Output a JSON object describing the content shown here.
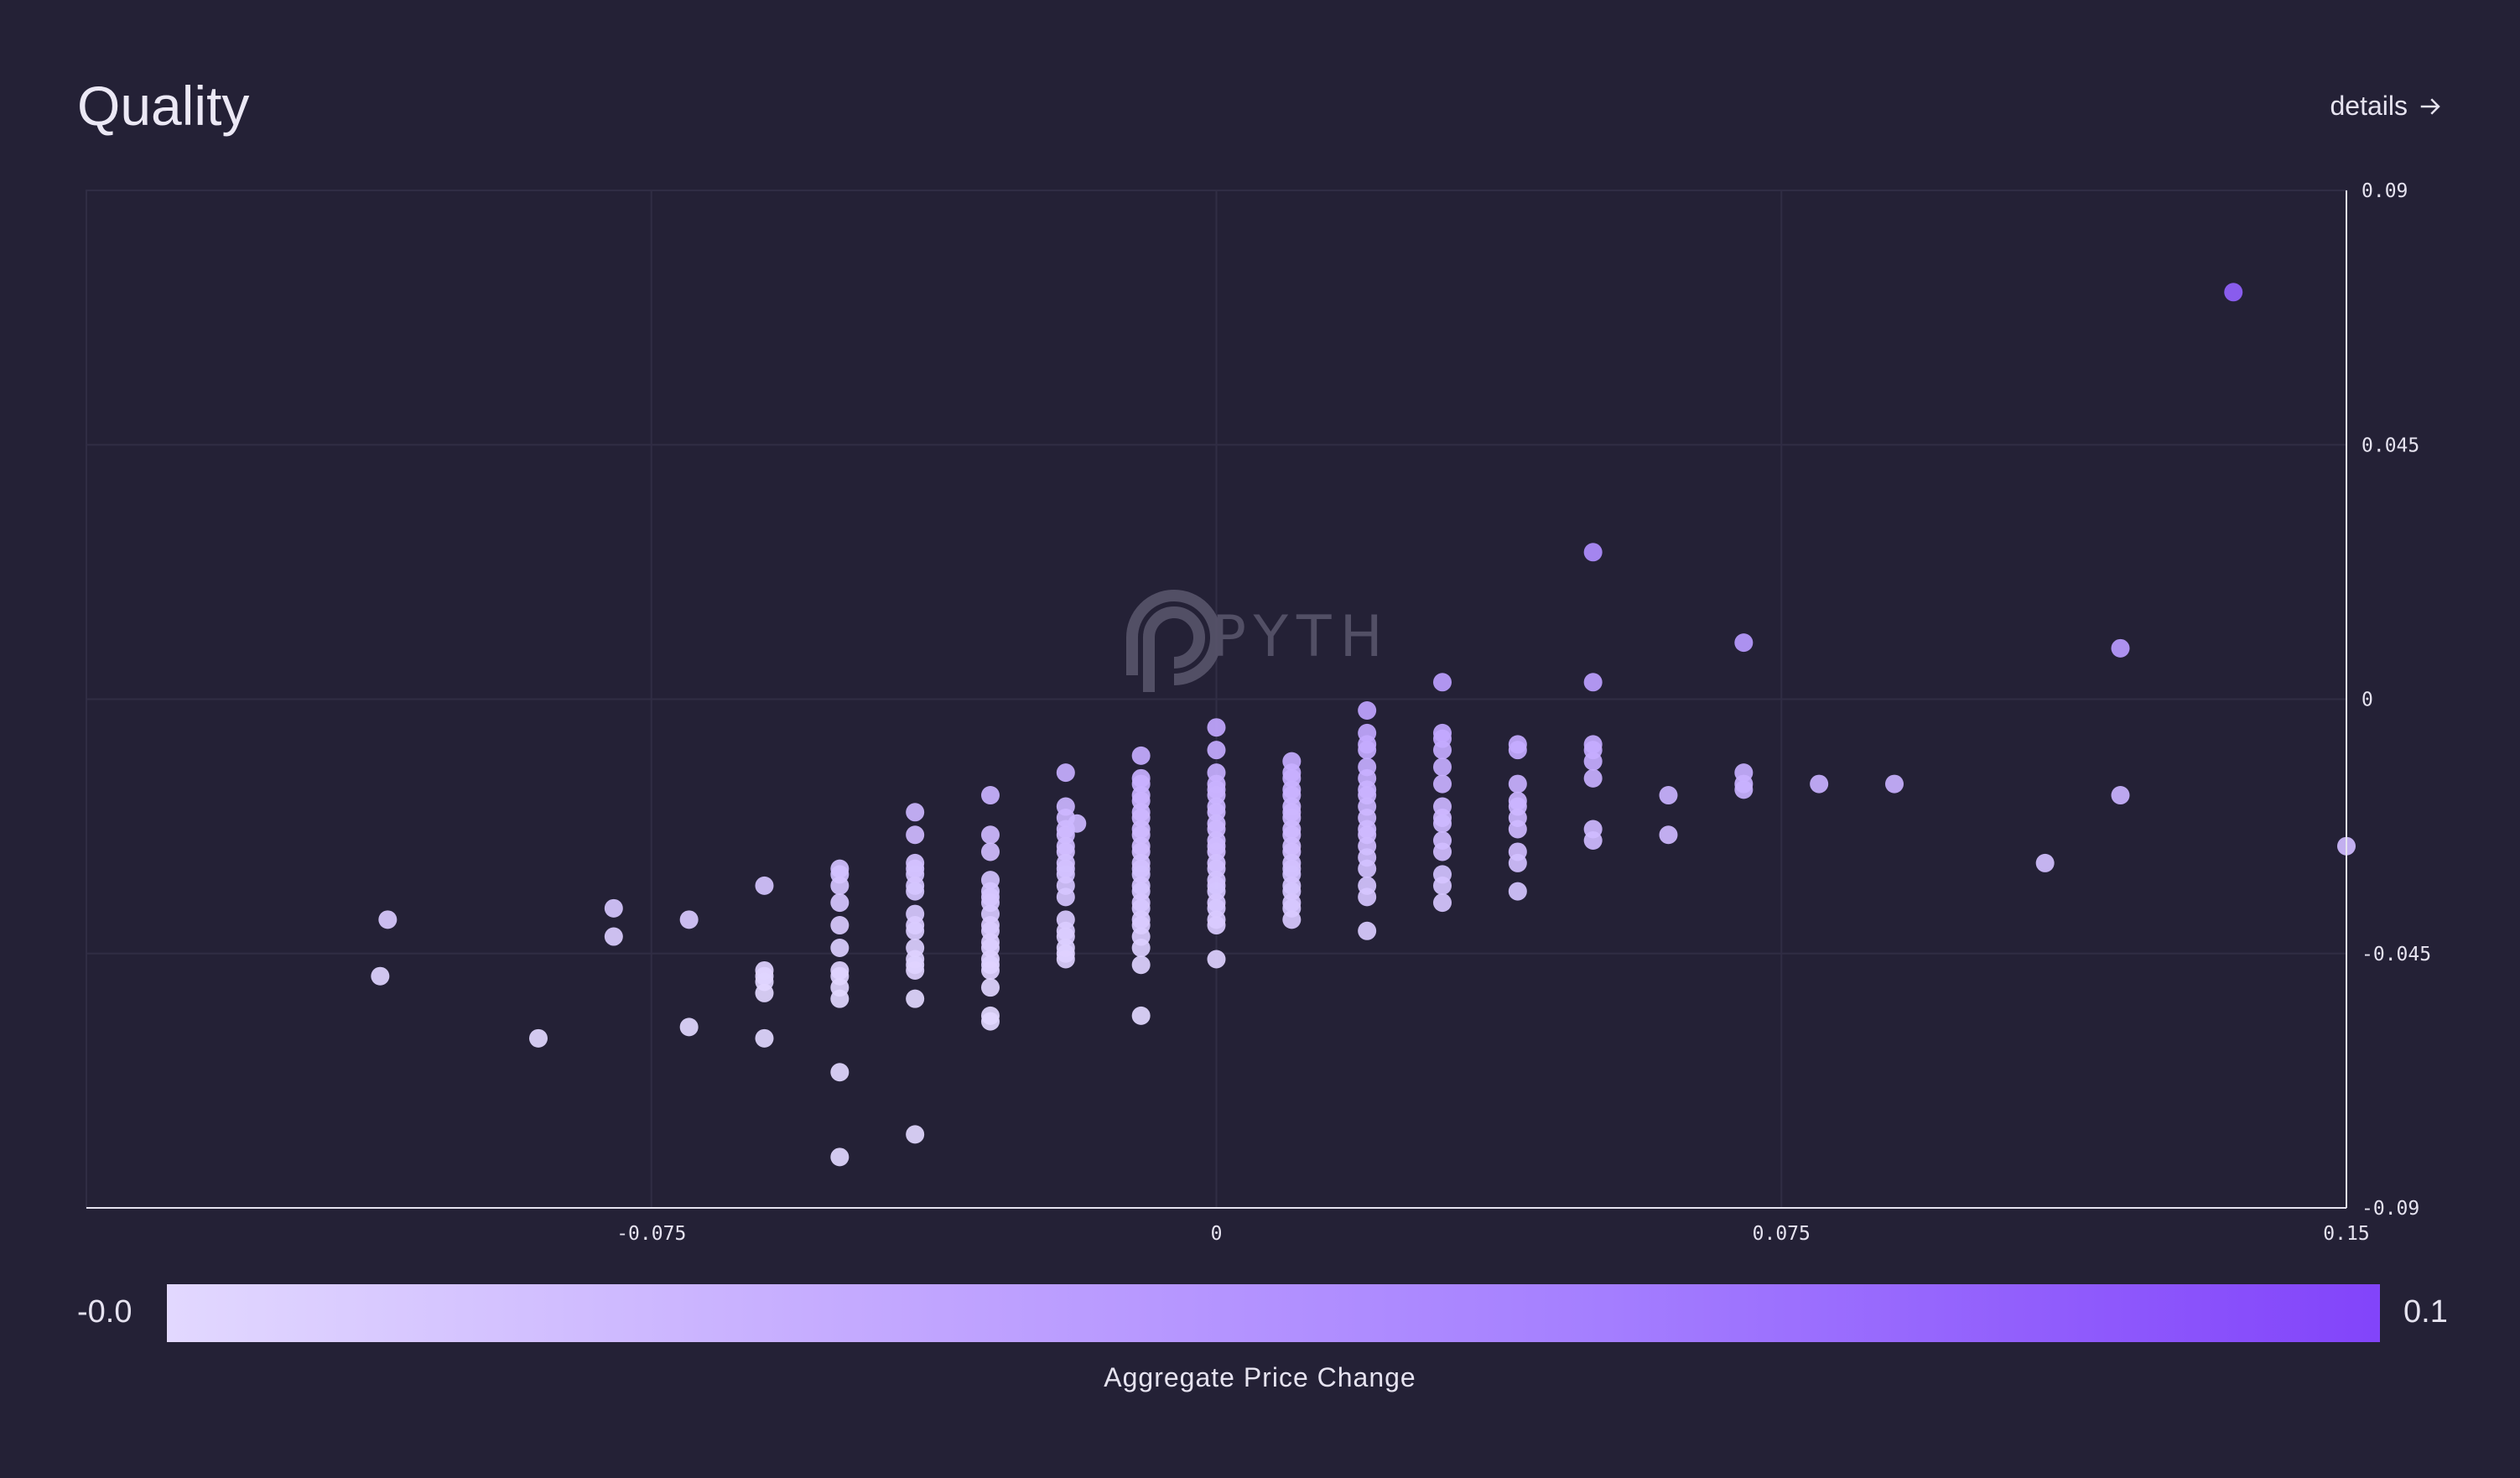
{
  "header": {
    "title": "Quality",
    "details_label": "details",
    "details_icon": "arrow-right-icon"
  },
  "watermark": {
    "text": "PYTH"
  },
  "colorbar": {
    "min_label": "-0.0",
    "max_label": "0.1",
    "label": "Aggregate Price Change",
    "colors": [
      "#e2d8ff",
      "#c0a4ff",
      "#a47eff",
      "#8244fa"
    ]
  },
  "colors": {
    "background": "#242136",
    "grid": "#302d44",
    "axis": "#e6e3f0"
  },
  "chart_data": {
    "type": "scatter",
    "xlim": [
      -0.15,
      0.15
    ],
    "ylim": [
      -0.09,
      0.09
    ],
    "x_ticks": [
      "-0.075",
      "0",
      "0.075",
      "0.15"
    ],
    "x_tick_values": [
      -0.075,
      0,
      0.075,
      0.15
    ],
    "y_ticks": [
      "0.09",
      "0.045",
      "0",
      "-0.045",
      "-0.09"
    ],
    "y_tick_values": [
      0.09,
      0.045,
      0,
      -0.045,
      -0.09
    ],
    "y_axis_side": "right",
    "grid": true,
    "columns": [
      {
        "x": -0.11,
        "y": [
          -0.039
        ]
      },
      {
        "x": -0.111,
        "y": [
          -0.049
        ]
      },
      {
        "x": -0.09,
        "y": [
          -0.06
        ]
      },
      {
        "x": -0.08,
        "y": [
          -0.037,
          -0.042
        ]
      },
      {
        "x": -0.07,
        "y": [
          -0.039,
          -0.058
        ]
      },
      {
        "x": -0.06,
        "y": [
          -0.033,
          -0.048,
          -0.049,
          -0.05,
          -0.052,
          -0.06
        ]
      },
      {
        "x": -0.05,
        "y": [
          -0.03,
          -0.031,
          -0.033,
          -0.036,
          -0.04,
          -0.044,
          -0.048,
          -0.049,
          -0.051,
          -0.053,
          -0.066,
          -0.081
        ]
      },
      {
        "x": -0.04,
        "y": [
          -0.02,
          -0.024,
          -0.029,
          -0.03,
          -0.031,
          -0.033,
          -0.034,
          -0.038,
          -0.04,
          -0.041,
          -0.044,
          -0.046,
          -0.047,
          -0.048,
          -0.053,
          -0.077
        ]
      },
      {
        "x": -0.03,
        "y": [
          -0.017,
          -0.024,
          -0.027,
          -0.032,
          -0.034,
          -0.035,
          -0.036,
          -0.038,
          -0.04,
          -0.041,
          -0.043,
          -0.044,
          -0.046,
          -0.047,
          -0.048,
          -0.051,
          -0.056,
          -0.057
        ]
      },
      {
        "x": -0.02,
        "y": [
          -0.013,
          -0.019,
          -0.021,
          -0.023,
          -0.024,
          -0.026,
          -0.027,
          -0.029,
          -0.03,
          -0.031,
          -0.033,
          -0.035,
          -0.039,
          -0.041,
          -0.042,
          -0.044,
          -0.045,
          -0.046
        ]
      },
      {
        "x": -0.0185,
        "y": [
          -0.022
        ]
      },
      {
        "x": -0.01,
        "y": [
          -0.01,
          -0.014,
          -0.015,
          -0.017,
          -0.018,
          -0.02,
          -0.021,
          -0.023,
          -0.024,
          -0.026,
          -0.027,
          -0.029,
          -0.03,
          -0.031,
          -0.033,
          -0.034,
          -0.036,
          -0.037,
          -0.039,
          -0.04,
          -0.042,
          -0.044,
          -0.047,
          -0.056
        ]
      },
      {
        "x": 0,
        "y": [
          -0.005,
          -0.009,
          -0.013,
          -0.015,
          -0.016,
          -0.017,
          -0.019,
          -0.02,
          -0.022,
          -0.023,
          -0.025,
          -0.026,
          -0.027,
          -0.029,
          -0.03,
          -0.032,
          -0.033,
          -0.034,
          -0.036,
          -0.037,
          -0.039,
          -0.04,
          -0.046
        ]
      },
      {
        "x": 0.01,
        "y": [
          -0.011,
          -0.013,
          -0.014,
          -0.016,
          -0.017,
          -0.019,
          -0.02,
          -0.021,
          -0.023,
          -0.024,
          -0.026,
          -0.027,
          -0.029,
          -0.03,
          -0.031,
          -0.033,
          -0.034,
          -0.036,
          -0.037,
          -0.039
        ]
      },
      {
        "x": 0.02,
        "y": [
          -0.002,
          -0.006,
          -0.008,
          -0.009,
          -0.012,
          -0.014,
          -0.016,
          -0.017,
          -0.019,
          -0.021,
          -0.023,
          -0.024,
          -0.026,
          -0.028,
          -0.03,
          -0.033,
          -0.035,
          -0.041
        ]
      },
      {
        "x": 0.03,
        "y": [
          0.003,
          -0.006,
          -0.007,
          -0.009,
          -0.012,
          -0.015,
          -0.019,
          -0.021,
          -0.022,
          -0.025,
          -0.027,
          -0.031,
          -0.033,
          -0.036
        ]
      },
      {
        "x": 0.04,
        "y": [
          -0.008,
          -0.009,
          -0.015,
          -0.018,
          -0.019,
          -0.021,
          -0.023,
          -0.027,
          -0.029,
          -0.034
        ]
      },
      {
        "x": 0.05,
        "y": [
          0.026,
          0.003,
          -0.008,
          -0.009,
          -0.011,
          -0.014,
          -0.023,
          -0.025
        ]
      },
      {
        "x": 0.06,
        "y": [
          -0.017,
          -0.024
        ]
      },
      {
        "x": 0.07,
        "y": [
          0.01,
          -0.013,
          -0.015,
          -0.016
        ]
      },
      {
        "x": 0.08,
        "y": [
          -0.015
        ]
      },
      {
        "x": 0.09,
        "y": [
          -0.015
        ]
      },
      {
        "x": 0.11,
        "y": [
          -0.029
        ]
      },
      {
        "x": 0.12,
        "y": [
          0.009,
          -0.017
        ]
      },
      {
        "x": 0.135,
        "y": [
          0.072
        ]
      },
      {
        "x": 0.15,
        "y": [
          -0.026
        ]
      }
    ]
  }
}
